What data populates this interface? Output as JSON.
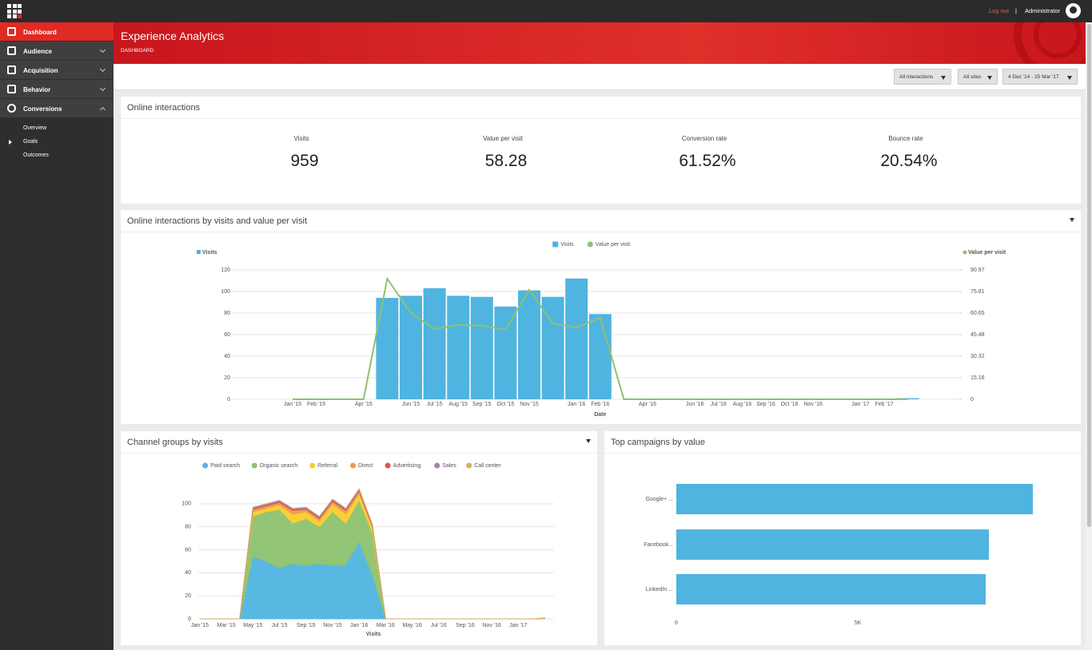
{
  "topbar": {
    "logout": "Log out",
    "separator": "|",
    "user": "Administrator"
  },
  "sidebar": {
    "items": [
      {
        "label": "Dashboard"
      },
      {
        "label": "Audience"
      },
      {
        "label": "Acquisition"
      },
      {
        "label": "Behavior"
      },
      {
        "label": "Conversions",
        "children": [
          "Overview",
          "Goals",
          "Outcomes"
        ]
      }
    ]
  },
  "header": {
    "title": "Experience Analytics",
    "breadcrumb": "DASHBOARD"
  },
  "filters": [
    "All interactions",
    "All sites",
    "4 Dec '14 - 25 Mar '17"
  ],
  "kpi_panel": {
    "title": "Online interactions",
    "kpis": [
      {
        "label": "Visits",
        "value": "959"
      },
      {
        "label": "Value per visit",
        "value": "58.28"
      },
      {
        "label": "Conversion rate",
        "value": "61.52%"
      },
      {
        "label": "Bounce rate",
        "value": "20.54%"
      }
    ]
  },
  "chart_data": [
    {
      "type": "combo",
      "title": "Online interactions by visits and value per visit",
      "xlabel": "Date",
      "ylabel": "Visits",
      "y2label": "Value per visit",
      "categories": [
        "Jan '15",
        "Feb '15",
        null,
        "Apr '15",
        null,
        "Jun '15",
        "Jul '15",
        "Aug '15",
        "Sep '15",
        "Oct '15",
        "Nov '15",
        null,
        "Jan '16",
        "Feb '16",
        null,
        "Apr '16",
        null,
        "Jun '16",
        "Jul '16",
        "Aug '16",
        "Sep '16",
        "Oct '16",
        "Nov '16",
        null,
        "Jan '17",
        "Feb '17",
        null
      ],
      "series": [
        {
          "name": "Visits",
          "type": "bar",
          "color": "#4fb4e0",
          "values": [
            0,
            0,
            0,
            0,
            94,
            96,
            103,
            96,
            95,
            86,
            101,
            95,
            112,
            79,
            0,
            0,
            0,
            0,
            0,
            0,
            0,
            0,
            0,
            0,
            0,
            0,
            1
          ]
        },
        {
          "name": "Value per visit",
          "type": "line",
          "axis": "y2",
          "color": "#8dc26f",
          "values": [
            0,
            0,
            0,
            0,
            84.8,
            60.6,
            49.4,
            52.2,
            51.7,
            48.9,
            76.9,
            53.3,
            50.5,
            57.3,
            0,
            0,
            0,
            0,
            0,
            0,
            0,
            0,
            0,
            0,
            0,
            0,
            0
          ]
        }
      ],
      "ylim": [
        0,
        120
      ],
      "yticks": [
        0,
        20,
        40,
        60,
        80,
        100,
        120
      ],
      "y2lim": [
        0,
        90.97
      ],
      "y2ticks": [
        0,
        15.16,
        30.32,
        45.48,
        60.65,
        75.81,
        90.97
      ],
      "grid": true,
      "legend": "top"
    },
    {
      "type": "stacked-area",
      "title": "Channel groups by visits",
      "xlabel": "Visits",
      "categories": [
        "Jan '15",
        null,
        "Mar '15",
        null,
        "May '15",
        null,
        "Jul '15",
        null,
        "Sep '15",
        null,
        "Nov '15",
        null,
        "Jan '16",
        null,
        "Mar '16",
        null,
        "May '16",
        null,
        "Jul '16",
        null,
        "Sep '16",
        null,
        "Nov '16",
        null,
        "Jan '17",
        null,
        null
      ],
      "series": [
        {
          "name": "Paid search",
          "color": "#4fb4e0",
          "values": [
            0,
            0,
            0,
            0,
            54,
            50,
            44,
            48,
            46,
            48,
            46,
            47,
            67,
            38,
            0,
            0,
            0,
            0,
            0,
            0,
            0,
            0,
            0,
            0,
            0,
            0,
            0
          ]
        },
        {
          "name": "Organic search",
          "color": "#8dc26f",
          "values": [
            0,
            0,
            0,
            0,
            35,
            43,
            51,
            35,
            41,
            32,
            47,
            36,
            36,
            37,
            0,
            0,
            0,
            0,
            0,
            0,
            0,
            0,
            0,
            0,
            0,
            0,
            0
          ]
        },
        {
          "name": "Referral",
          "color": "#f7cd2e",
          "values": [
            0,
            0,
            0,
            0,
            4,
            3,
            4,
            8,
            6,
            5,
            7,
            8,
            6,
            4,
            0,
            0,
            0,
            0,
            0,
            0,
            0,
            0,
            0,
            0,
            0,
            0,
            0
          ]
        },
        {
          "name": "Direct",
          "color": "#f39a44",
          "values": [
            0,
            0,
            0,
            0,
            2,
            2,
            2,
            3,
            2,
            2,
            2,
            3,
            2,
            2,
            0,
            0,
            0,
            0,
            0,
            0,
            0,
            0,
            0,
            0,
            0,
            0,
            0
          ]
        },
        {
          "name": "Advertising",
          "color": "#e0534e",
          "values": [
            0,
            0,
            0,
            0,
            1,
            1,
            1,
            1,
            1,
            1,
            1,
            1,
            1,
            1,
            0,
            0,
            0,
            0,
            0,
            0,
            0,
            0,
            0,
            0,
            0,
            0,
            0
          ]
        },
        {
          "name": "Sales",
          "color": "#a97fae",
          "values": [
            0,
            0,
            0,
            0,
            1,
            1,
            1,
            1,
            1,
            1,
            1,
            1,
            1,
            0,
            0,
            0,
            0,
            0,
            0,
            0,
            0,
            0,
            0,
            0,
            0,
            0,
            0
          ]
        },
        {
          "name": "Call center",
          "color": "#d6b25a",
          "values": [
            0,
            0,
            0,
            0,
            0,
            0,
            0,
            0,
            0,
            0,
            0,
            0,
            0,
            0,
            0,
            0,
            0,
            0,
            0,
            0,
            0,
            0,
            0,
            0,
            0,
            0,
            1
          ]
        }
      ],
      "ylim": [
        0,
        120
      ],
      "yticks": [
        0,
        20,
        40,
        60,
        80,
        100
      ],
      "grid": true,
      "legend": "top"
    },
    {
      "type": "hbar",
      "title": "Top campaigns by value",
      "categories": [
        "Google+ ...",
        "Facebook...",
        "LinkedIn ..."
      ],
      "values": [
        9824,
        8612,
        8524
      ],
      "color": "#4fb4e0",
      "xlim": [
        0,
        10000
      ],
      "xticks": [
        0,
        {
          "value": 5000,
          "label": "5K"
        }
      ],
      "grid": false
    }
  ]
}
